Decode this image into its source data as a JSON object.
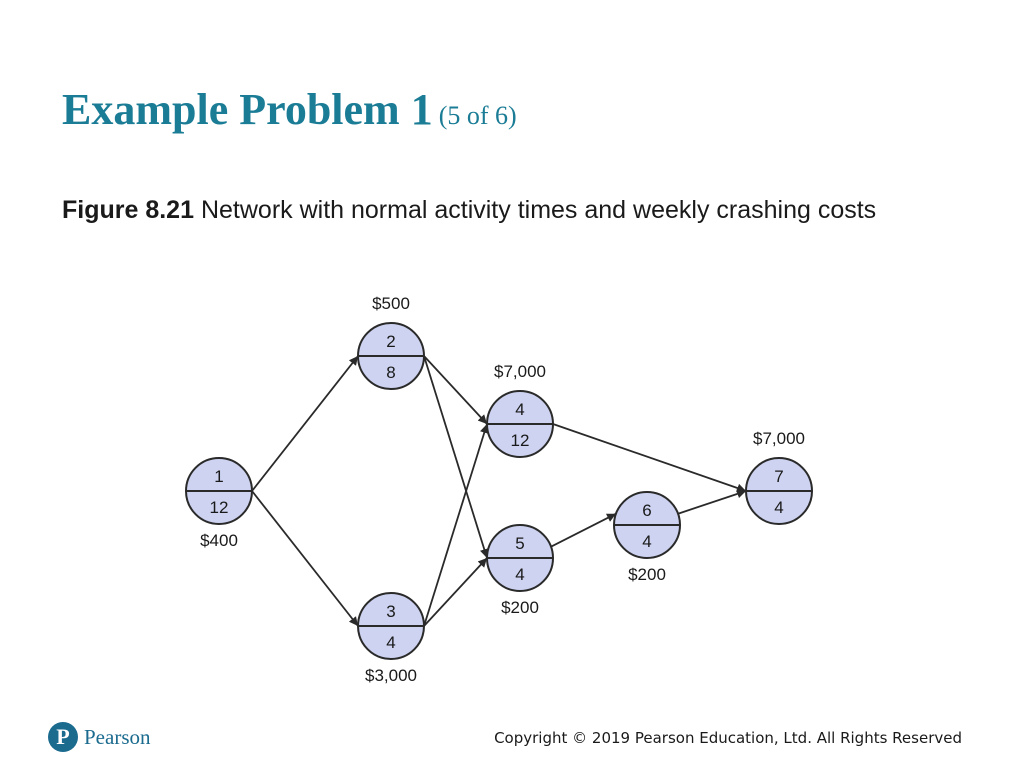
{
  "slide": {
    "title": "Example Problem 1",
    "title_sub": "(5 of 6)",
    "caption_label": "Figure 8.21",
    "caption_text": "Network with normal activity times and weekly crashing costs"
  },
  "network": {
    "nodes": [
      {
        "id": "1",
        "time": "12",
        "cost": "$400"
      },
      {
        "id": "2",
        "time": "8",
        "cost": "$500"
      },
      {
        "id": "3",
        "time": "4",
        "cost": "$3,000"
      },
      {
        "id": "4",
        "time": "12",
        "cost": "$7,000"
      },
      {
        "id": "5",
        "time": "4",
        "cost": "$200"
      },
      {
        "id": "6",
        "time": "4",
        "cost": "$200"
      },
      {
        "id": "7",
        "time": "4",
        "cost": "$7,000"
      }
    ],
    "edges": [
      [
        "1",
        "2"
      ],
      [
        "1",
        "3"
      ],
      [
        "2",
        "4"
      ],
      [
        "2",
        "5"
      ],
      [
        "3",
        "4"
      ],
      [
        "3",
        "5"
      ],
      [
        "4",
        "7"
      ],
      [
        "5",
        "6"
      ],
      [
        "6",
        "7"
      ]
    ]
  },
  "colors": {
    "title": "#1b7c96",
    "node_fill": "#cdd3f0",
    "brand": "#1b6b8f"
  },
  "footer": {
    "brand_name": "Pearson",
    "logo_letter": "P",
    "copyright": "Copyright © 2019 Pearson Education, Ltd. All Rights Reserved"
  }
}
